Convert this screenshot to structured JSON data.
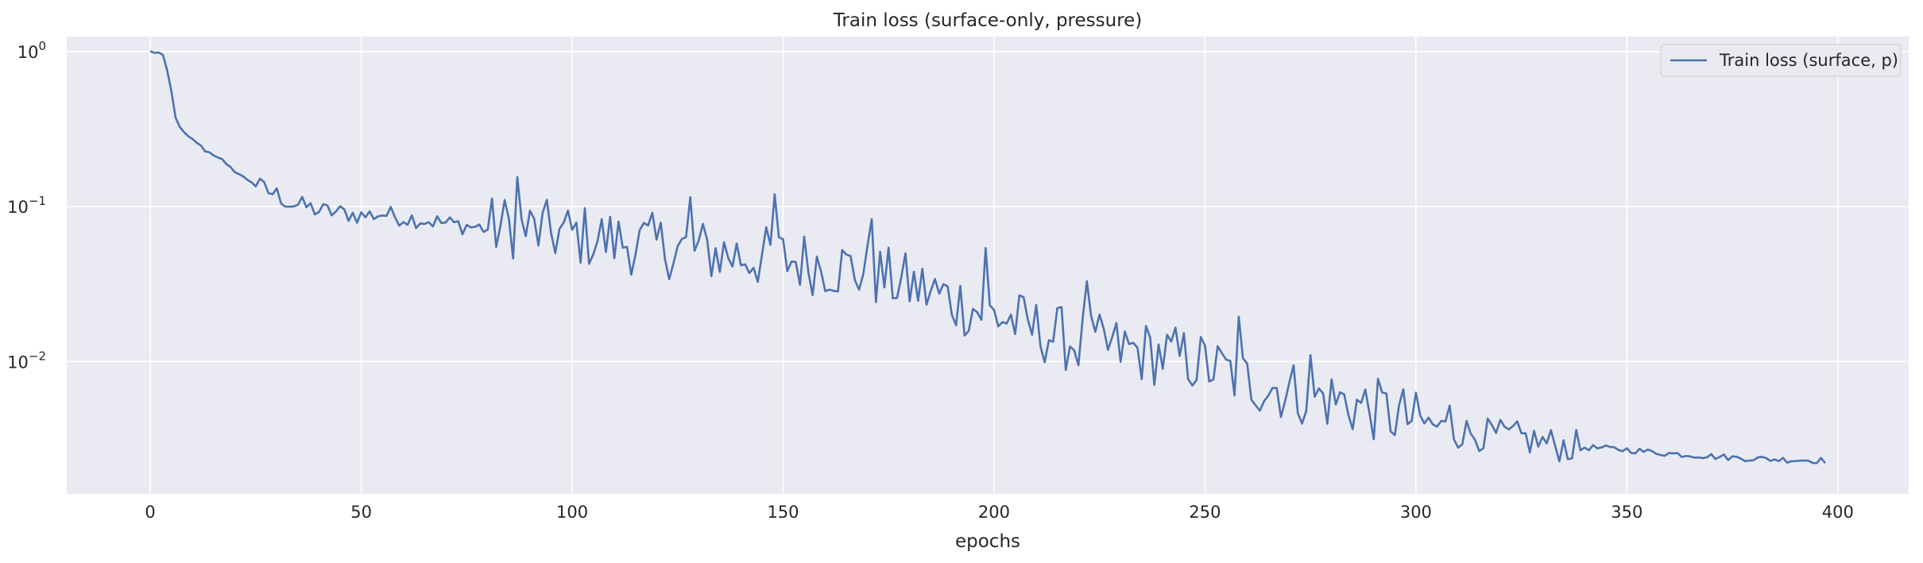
{
  "chart_data": {
    "type": "line",
    "title": "Train loss (surface-only, pressure)",
    "xlabel": "epochs",
    "ylabel": "",
    "yscale": "log",
    "xlim": [
      -19.8,
      416.8
    ],
    "ylim": [
      0.0014,
      1.25
    ],
    "grid": true,
    "legend_position": "upper right",
    "background": "#eaeaf2",
    "x_ticks": [
      0,
      50,
      100,
      150,
      200,
      250,
      300,
      350,
      400
    ],
    "y_ticks": [
      {
        "value": 1,
        "base": "10",
        "exp": "0"
      },
      {
        "value": 0.1,
        "base": "10",
        "exp": "−1"
      },
      {
        "value": 0.01,
        "base": "10",
        "exp": "−2"
      }
    ],
    "series": [
      {
        "name": "Train loss (surface, p)",
        "color": "#4c72b0",
        "anchors": [
          [
            0,
            1.0
          ],
          [
            2,
            0.98
          ],
          [
            3,
            0.93
          ],
          [
            4,
            0.75
          ],
          [
            5,
            0.55
          ],
          [
            6,
            0.38
          ],
          [
            7,
            0.32
          ],
          [
            9,
            0.28
          ],
          [
            11,
            0.26
          ],
          [
            13,
            0.23
          ],
          [
            16,
            0.21
          ],
          [
            17,
            0.2
          ],
          [
            18,
            0.185
          ],
          [
            20,
            0.17
          ],
          [
            22,
            0.155
          ],
          [
            25,
            0.14
          ],
          [
            28,
            0.125
          ],
          [
            30,
            0.12
          ],
          [
            33,
            0.105
          ],
          [
            37,
            0.1
          ],
          [
            40,
            0.094
          ],
          [
            44,
            0.092
          ],
          [
            47,
            0.09
          ],
          [
            50,
            0.087
          ],
          [
            55,
            0.09
          ],
          [
            60,
            0.085
          ],
          [
            65,
            0.082
          ],
          [
            70,
            0.078
          ],
          [
            75,
            0.075
          ],
          [
            80,
            0.072
          ],
          [
            85,
            0.075
          ],
          [
            90,
            0.07
          ],
          [
            95,
            0.068
          ],
          [
            100,
            0.066
          ],
          [
            105,
            0.063
          ],
          [
            110,
            0.06
          ],
          [
            115,
            0.058
          ],
          [
            120,
            0.056
          ],
          [
            125,
            0.054
          ],
          [
            130,
            0.052
          ],
          [
            135,
            0.05
          ],
          [
            140,
            0.048
          ],
          [
            145,
            0.047
          ],
          [
            150,
            0.046
          ],
          [
            155,
            0.044
          ],
          [
            160,
            0.042
          ],
          [
            165,
            0.04
          ],
          [
            170,
            0.037
          ],
          [
            175,
            0.034
          ],
          [
            180,
            0.031
          ],
          [
            185,
            0.028
          ],
          [
            190,
            0.025
          ],
          [
            195,
            0.022
          ],
          [
            200,
            0.02
          ],
          [
            205,
            0.018
          ],
          [
            210,
            0.016
          ],
          [
            215,
            0.0145
          ],
          [
            220,
            0.013
          ],
          [
            225,
            0.0125
          ],
          [
            230,
            0.012
          ],
          [
            235,
            0.0115
          ],
          [
            240,
            0.011
          ],
          [
            245,
            0.0105
          ],
          [
            250,
            0.0095
          ],
          [
            255,
            0.0085
          ],
          [
            260,
            0.0075
          ],
          [
            265,
            0.007
          ],
          [
            270,
            0.0065
          ],
          [
            275,
            0.006
          ],
          [
            280,
            0.0057
          ],
          [
            285,
            0.0053
          ],
          [
            290,
            0.0049
          ],
          [
            295,
            0.0045
          ],
          [
            300,
            0.0042
          ],
          [
            305,
            0.0038
          ],
          [
            310,
            0.0035
          ],
          [
            315,
            0.0034
          ],
          [
            320,
            0.0033
          ],
          [
            325,
            0.0032
          ],
          [
            330,
            0.003
          ],
          [
            335,
            0.00285
          ],
          [
            340,
            0.0028
          ],
          [
            345,
            0.00275
          ],
          [
            350,
            0.0027
          ],
          [
            355,
            0.00262
          ],
          [
            360,
            0.00255
          ],
          [
            365,
            0.0025
          ],
          [
            370,
            0.00245
          ],
          [
            375,
            0.0024
          ],
          [
            380,
            0.00237
          ],
          [
            385,
            0.00234
          ],
          [
            390,
            0.00232
          ],
          [
            397,
            0.0023
          ]
        ],
        "spikes": [
          [
            87,
            0.155
          ],
          [
            128,
            0.115
          ],
          [
            148,
            0.12
          ],
          [
            171,
            0.083
          ],
          [
            198,
            0.054
          ],
          [
            222,
            0.033
          ],
          [
            258,
            0.0195
          ],
          [
            275,
            0.011
          ],
          [
            300,
            0.0063
          ],
          [
            308,
            0.0052
          ]
        ]
      }
    ]
  }
}
